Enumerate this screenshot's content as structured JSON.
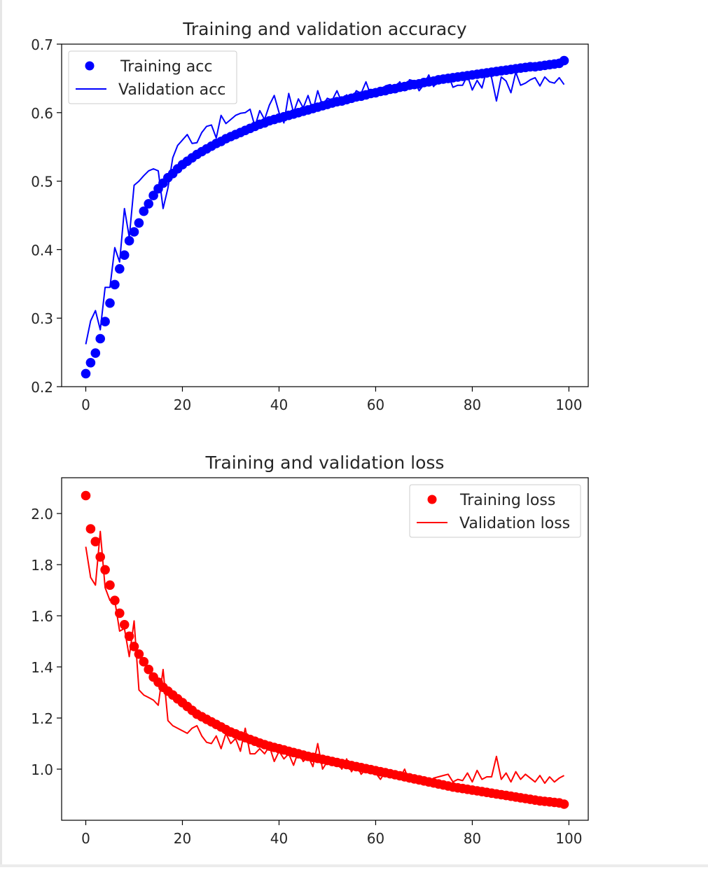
{
  "chart_data": [
    {
      "type": "line",
      "title": "Training and validation accuracy",
      "xlabel": "",
      "ylabel": "",
      "xlim": [
        -5,
        104
      ],
      "ylim": [
        0.2,
        0.7
      ],
      "xticks": [
        0,
        20,
        40,
        60,
        80,
        100
      ],
      "xtick_labels": [
        "0",
        "20",
        "40",
        "60",
        "80",
        "100"
      ],
      "yticks": [
        0.2,
        0.3,
        0.4,
        0.5,
        0.6,
        0.7
      ],
      "ytick_labels": [
        "0.2",
        "0.3",
        "0.4",
        "0.5",
        "0.6",
        "0.7"
      ],
      "legend_position": "upper left",
      "series": [
        {
          "name": "Training acc",
          "style": "markers",
          "color": "#0000ff",
          "x": [
            0,
            1,
            2,
            3,
            4,
            5,
            6,
            7,
            8,
            9,
            10,
            11,
            12,
            13,
            14,
            15,
            16,
            17,
            18,
            19,
            20,
            21,
            22,
            23,
            24,
            25,
            26,
            27,
            28,
            29,
            30,
            31,
            32,
            33,
            34,
            35,
            36,
            37,
            38,
            39,
            40,
            41,
            42,
            43,
            44,
            45,
            46,
            47,
            48,
            49,
            50,
            51,
            52,
            53,
            54,
            55,
            56,
            57,
            58,
            59,
            60,
            61,
            62,
            63,
            64,
            65,
            66,
            67,
            68,
            69,
            70,
            71,
            72,
            73,
            74,
            75,
            76,
            77,
            78,
            79,
            80,
            81,
            82,
            83,
            84,
            85,
            86,
            87,
            88,
            89,
            90,
            91,
            92,
            93,
            94,
            95,
            96,
            97,
            98,
            99
          ],
          "y": [
            0.219,
            0.235,
            0.249,
            0.27,
            0.295,
            0.322,
            0.349,
            0.372,
            0.392,
            0.413,
            0.426,
            0.439,
            0.456,
            0.467,
            0.479,
            0.489,
            0.497,
            0.505,
            0.511,
            0.518,
            0.524,
            0.529,
            0.534,
            0.539,
            0.543,
            0.547,
            0.551,
            0.555,
            0.558,
            0.562,
            0.565,
            0.568,
            0.571,
            0.574,
            0.577,
            0.58,
            0.583,
            0.585,
            0.588,
            0.59,
            0.592,
            0.594,
            0.596,
            0.598,
            0.6,
            0.602,
            0.604,
            0.606,
            0.608,
            0.61,
            0.612,
            0.614,
            0.616,
            0.617,
            0.619,
            0.621,
            0.623,
            0.624,
            0.626,
            0.628,
            0.629,
            0.631,
            0.632,
            0.634,
            0.635,
            0.637,
            0.638,
            0.64,
            0.641,
            0.642,
            0.644,
            0.645,
            0.646,
            0.648,
            0.649,
            0.65,
            0.651,
            0.652,
            0.653,
            0.654,
            0.655,
            0.656,
            0.657,
            0.658,
            0.659,
            0.66,
            0.661,
            0.662,
            0.663,
            0.664,
            0.665,
            0.666,
            0.667,
            0.667,
            0.668,
            0.669,
            0.67,
            0.671,
            0.672,
            0.676
          ]
        },
        {
          "name": "Validation acc",
          "style": "line",
          "color": "#0000ff",
          "x": [
            0,
            1,
            2,
            3,
            4,
            5,
            6,
            7,
            8,
            9,
            10,
            11,
            12,
            13,
            14,
            15,
            16,
            17,
            18,
            19,
            20,
            21,
            22,
            23,
            24,
            25,
            26,
            27,
            28,
            29,
            30,
            31,
            32,
            33,
            34,
            35,
            36,
            37,
            38,
            39,
            40,
            41,
            42,
            43,
            44,
            45,
            46,
            47,
            48,
            49,
            50,
            51,
            52,
            53,
            54,
            55,
            56,
            57,
            58,
            59,
            60,
            61,
            62,
            63,
            64,
            65,
            66,
            67,
            68,
            69,
            70,
            71,
            72,
            73,
            74,
            75,
            76,
            77,
            78,
            79,
            80,
            81,
            82,
            83,
            84,
            85,
            86,
            87,
            88,
            89,
            90,
            91,
            92,
            93,
            94,
            95,
            96,
            97,
            98,
            99
          ],
          "y": [
            0.262,
            0.296,
            0.311,
            0.283,
            0.345,
            0.345,
            0.403,
            0.382,
            0.46,
            0.418,
            0.494,
            0.5,
            0.508,
            0.515,
            0.518,
            0.515,
            0.46,
            0.49,
            0.534,
            0.552,
            0.56,
            0.568,
            0.555,
            0.556,
            0.571,
            0.58,
            0.582,
            0.563,
            0.596,
            0.584,
            0.59,
            0.596,
            0.599,
            0.6,
            0.605,
            0.58,
            0.603,
            0.59,
            0.611,
            0.625,
            0.6,
            0.585,
            0.628,
            0.6,
            0.62,
            0.607,
            0.625,
            0.603,
            0.632,
            0.61,
            0.621,
            0.618,
            0.632,
            0.615,
            0.626,
            0.618,
            0.632,
            0.628,
            0.645,
            0.625,
            0.635,
            0.627,
            0.639,
            0.641,
            0.636,
            0.645,
            0.632,
            0.648,
            0.646,
            0.632,
            0.641,
            0.655,
            0.638,
            0.648,
            0.644,
            0.656,
            0.637,
            0.64,
            0.64,
            0.654,
            0.633,
            0.647,
            0.636,
            0.663,
            0.651,
            0.617,
            0.652,
            0.646,
            0.629,
            0.659,
            0.64,
            0.643,
            0.648,
            0.651,
            0.639,
            0.652,
            0.645,
            0.643,
            0.651,
            0.641
          ]
        }
      ]
    },
    {
      "type": "line",
      "title": "Training and validation loss",
      "xlabel": "",
      "ylabel": "",
      "xlim": [
        -5,
        104
      ],
      "ylim": [
        0.8,
        2.14
      ],
      "xticks": [
        0,
        20,
        40,
        60,
        80,
        100
      ],
      "xtick_labels": [
        "0",
        "20",
        "40",
        "60",
        "80",
        "100"
      ],
      "yticks": [
        1.0,
        1.2,
        1.4,
        1.6,
        1.8,
        2.0
      ],
      "ytick_labels": [
        "1.0",
        "1.2",
        "1.4",
        "1.6",
        "1.8",
        "2.0"
      ],
      "legend_position": "upper right",
      "series": [
        {
          "name": "Training loss",
          "style": "markers",
          "color": "#ff0000",
          "x": [
            0,
            1,
            2,
            3,
            4,
            5,
            6,
            7,
            8,
            9,
            10,
            11,
            12,
            13,
            14,
            15,
            16,
            17,
            18,
            19,
            20,
            21,
            22,
            23,
            24,
            25,
            26,
            27,
            28,
            29,
            30,
            31,
            32,
            33,
            34,
            35,
            36,
            37,
            38,
            39,
            40,
            41,
            42,
            43,
            44,
            45,
            46,
            47,
            48,
            49,
            50,
            51,
            52,
            53,
            54,
            55,
            56,
            57,
            58,
            59,
            60,
            61,
            62,
            63,
            64,
            65,
            66,
            67,
            68,
            69,
            70,
            71,
            72,
            73,
            74,
            75,
            76,
            77,
            78,
            79,
            80,
            81,
            82,
            83,
            84,
            85,
            86,
            87,
            88,
            89,
            90,
            91,
            92,
            93,
            94,
            95,
            96,
            97,
            98,
            99
          ],
          "y": [
            2.07,
            1.94,
            1.89,
            1.83,
            1.78,
            1.72,
            1.66,
            1.61,
            1.565,
            1.52,
            1.48,
            1.45,
            1.42,
            1.39,
            1.36,
            1.34,
            1.32,
            1.305,
            1.29,
            1.275,
            1.26,
            1.245,
            1.23,
            1.215,
            1.205,
            1.195,
            1.185,
            1.175,
            1.165,
            1.155,
            1.145,
            1.138,
            1.13,
            1.123,
            1.116,
            1.109,
            1.102,
            1.096,
            1.09,
            1.085,
            1.08,
            1.075,
            1.07,
            1.065,
            1.06,
            1.055,
            1.05,
            1.046,
            1.042,
            1.038,
            1.034,
            1.03,
            1.026,
            1.022,
            1.018,
            1.014,
            1.01,
            1.006,
            1.002,
            0.998,
            0.994,
            0.99,
            0.986,
            0.982,
            0.978,
            0.974,
            0.97,
            0.966,
            0.962,
            0.958,
            0.954,
            0.95,
            0.946,
            0.942,
            0.938,
            0.934,
            0.93,
            0.927,
            0.924,
            0.921,
            0.918,
            0.915,
            0.912,
            0.909,
            0.906,
            0.903,
            0.9,
            0.897,
            0.894,
            0.891,
            0.888,
            0.885,
            0.882,
            0.879,
            0.876,
            0.874,
            0.872,
            0.87,
            0.868,
            0.863
          ]
        },
        {
          "name": "Validation loss",
          "style": "line",
          "color": "#ff0000",
          "x": [
            0,
            1,
            2,
            3,
            4,
            5,
            6,
            7,
            8,
            9,
            10,
            11,
            12,
            13,
            14,
            15,
            16,
            17,
            18,
            19,
            20,
            21,
            22,
            23,
            24,
            25,
            26,
            27,
            28,
            29,
            30,
            31,
            32,
            33,
            34,
            35,
            36,
            37,
            38,
            39,
            40,
            41,
            42,
            43,
            44,
            45,
            46,
            47,
            48,
            49,
            50,
            51,
            52,
            53,
            54,
            55,
            56,
            57,
            58,
            59,
            60,
            61,
            62,
            63,
            64,
            65,
            66,
            67,
            68,
            69,
            70,
            71,
            72,
            73,
            74,
            75,
            76,
            77,
            78,
            79,
            80,
            81,
            82,
            83,
            84,
            85,
            86,
            87,
            88,
            89,
            90,
            91,
            92,
            93,
            94,
            95,
            96,
            97,
            98,
            99
          ],
          "y": [
            1.87,
            1.75,
            1.72,
            1.93,
            1.71,
            1.66,
            1.66,
            1.54,
            1.55,
            1.44,
            1.58,
            1.31,
            1.29,
            1.28,
            1.27,
            1.25,
            1.39,
            1.19,
            1.17,
            1.16,
            1.15,
            1.14,
            1.16,
            1.17,
            1.13,
            1.105,
            1.1,
            1.13,
            1.08,
            1.14,
            1.1,
            1.12,
            1.07,
            1.16,
            1.06,
            1.06,
            1.08,
            1.06,
            1.09,
            1.03,
            1.07,
            1.04,
            1.06,
            1.015,
            1.07,
            1.03,
            1.05,
            1.01,
            1.1,
            1.0,
            1.03,
            1.02,
            1.03,
            1.0,
            1.04,
            0.99,
            1.02,
            0.98,
            1.0,
            0.995,
            0.985,
            0.96,
            0.99,
            0.97,
            0.975,
            0.965,
            1.0,
            0.95,
            0.965,
            0.945,
            0.96,
            0.95,
            0.965,
            0.97,
            0.975,
            0.98,
            0.95,
            0.96,
            0.955,
            0.985,
            0.95,
            0.995,
            0.96,
            0.97,
            0.97,
            1.05,
            0.96,
            0.985,
            0.95,
            0.99,
            0.96,
            0.98,
            0.965,
            0.95,
            0.975,
            0.945,
            0.97,
            0.95,
            0.965,
            0.975
          ]
        }
      ]
    }
  ]
}
